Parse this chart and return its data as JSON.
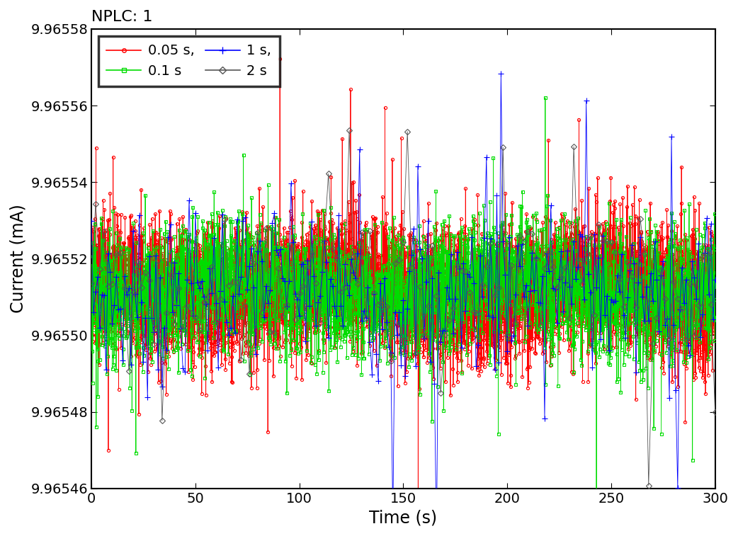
{
  "title": "NPLC: 1",
  "xlabel": "Time (s)",
  "ylabel": "Current (mA)",
  "ylim": [
    9.96546,
    9.96558
  ],
  "xlim": [
    0,
    300
  ],
  "yticks": [
    9.96546,
    9.96548,
    9.9655,
    9.96552,
    9.96554,
    9.96556,
    9.96558
  ],
  "xticks": [
    0,
    50,
    100,
    150,
    200,
    250,
    300
  ],
  "base_current": 9.965512,
  "series": [
    {
      "label": "0.05 s,",
      "dt": 0.05,
      "color": "#ff0000",
      "marker": "o",
      "markersize": 3,
      "noise_std": 8.5e-06,
      "seed": 42,
      "zorder": 2
    },
    {
      "label": "0.1 s",
      "dt": 0.1,
      "color": "#00dd00",
      "marker": "s",
      "markersize": 3,
      "noise_std": 9e-06,
      "seed": 123,
      "zorder": 3
    },
    {
      "label": "1 s,",
      "dt": 1.0,
      "color": "#0000ff",
      "marker": "+",
      "markersize": 6,
      "noise_std": 1.1e-05,
      "seed": 7,
      "zorder": 4
    },
    {
      "label": "2 s",
      "dt": 2.0,
      "color": "#555555",
      "marker": "D",
      "markersize": 4,
      "noise_std": 9.5e-06,
      "seed": 99,
      "zorder": 5
    }
  ],
  "legend_loc": "upper left",
  "title_fontsize": 16,
  "label_fontsize": 17,
  "tick_fontsize": 14,
  "legend_fontsize": 14,
  "figsize": [
    10.42,
    7.57
  ],
  "dpi": 100
}
